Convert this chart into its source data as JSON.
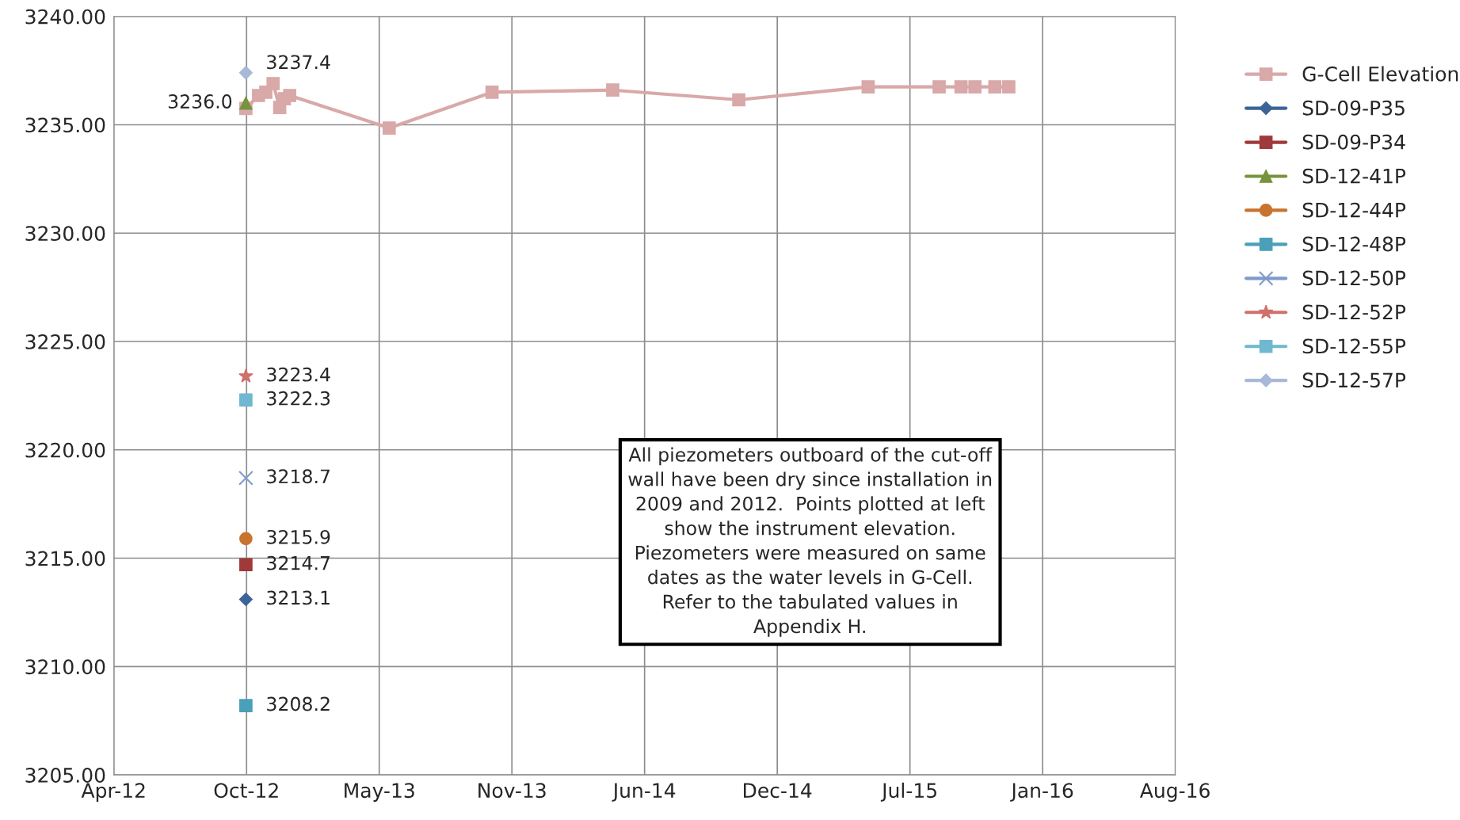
{
  "chart_data": {
    "type": "line",
    "xlim": [
      "2012-04-01",
      "2016-08-18"
    ],
    "xticks": [
      {
        "value": "2012-04-01",
        "label": "Apr-12"
      },
      {
        "value": "2012-10-18",
        "label": "Oct-12"
      },
      {
        "value": "2013-05-06",
        "label": "May-13"
      },
      {
        "value": "2013-11-22",
        "label": "Nov-13"
      },
      {
        "value": "2014-06-10",
        "label": "Jun-14"
      },
      {
        "value": "2014-12-27",
        "label": "Dec-14"
      },
      {
        "value": "2015-07-15",
        "label": "Jul-15"
      },
      {
        "value": "2016-01-31",
        "label": "Jan-16"
      },
      {
        "value": "2016-08-18",
        "label": "Aug-16"
      }
    ],
    "ylim": [
      3205,
      3240
    ],
    "yticks": [
      {
        "value": 3205,
        "label": "3205.00"
      },
      {
        "value": 3210,
        "label": "3210.00"
      },
      {
        "value": 3215,
        "label": "3215.00"
      },
      {
        "value": 3220,
        "label": "3220.00"
      },
      {
        "value": 3225,
        "label": "3225.00"
      },
      {
        "value": 3230,
        "label": "3230.00"
      },
      {
        "value": 3235,
        "label": "3235.00"
      },
      {
        "value": 3240,
        "label": "3240.00"
      }
    ],
    "grid": true,
    "legend": "right",
    "line_style": "solid",
    "series": [
      {
        "name": "G-Cell Elevation",
        "color": "#d9a8a8",
        "marker": "square",
        "x": [
          "2012-10-17",
          "2012-11-05",
          "2012-11-16",
          "2012-11-27",
          "2012-12-07",
          "2012-12-14",
          "2012-12-22",
          "2013-05-21",
          "2013-10-23",
          "2014-04-23",
          "2014-10-30",
          "2015-05-13",
          "2015-08-28",
          "2015-09-30",
          "2015-10-21",
          "2015-11-20",
          "2015-12-11"
        ],
        "values": [
          3235.75,
          3236.35,
          3236.5,
          3236.9,
          3235.8,
          3236.2,
          3236.35,
          3234.85,
          3236.5,
          3236.6,
          3236.15,
          3236.75,
          3236.75,
          3236.75,
          3236.75,
          3236.75,
          3236.75
        ]
      },
      {
        "name": "SD-09-P35",
        "color": "#3c6496",
        "marker": "diamond",
        "x": [
          "2012-10-17"
        ],
        "values": [
          3213.1
        ],
        "value_labels": [
          "3213.1"
        ]
      },
      {
        "name": "SD-09-P34",
        "color": "#a0393a",
        "marker": "square",
        "x": [
          "2012-10-17"
        ],
        "values": [
          3214.7
        ],
        "value_labels": [
          "3214.7"
        ]
      },
      {
        "name": "SD-12-41P",
        "color": "#77933c",
        "marker": "triangle",
        "x": [
          "2012-10-17"
        ],
        "values": [
          3236.0
        ],
        "value_labels": [
          "3236.0"
        ]
      },
      {
        "name": "SD-12-44P",
        "color": "#c8742f",
        "marker": "circle",
        "x": [
          "2012-10-17"
        ],
        "values": [
          3215.9
        ],
        "value_labels": [
          "3215.9"
        ]
      },
      {
        "name": "SD-12-48P",
        "color": "#4aa0b8",
        "marker": "square",
        "x": [
          "2012-10-17"
        ],
        "values": [
          3208.2
        ],
        "value_labels": [
          "3208.2"
        ]
      },
      {
        "name": "SD-12-50P",
        "color": "#7f9bc9",
        "marker": "cross",
        "x": [
          "2012-10-17"
        ],
        "values": [
          3218.7
        ],
        "value_labels": [
          "3218.7"
        ]
      },
      {
        "name": "SD-12-52P",
        "color": "#d0706c",
        "marker": "star",
        "x": [
          "2012-10-17"
        ],
        "values": [
          3223.4
        ],
        "value_labels": [
          "3223.4"
        ]
      },
      {
        "name": "SD-12-55P",
        "color": "#6fb8cf",
        "marker": "square",
        "x": [
          "2012-10-17"
        ],
        "values": [
          3222.3
        ],
        "value_labels": [
          "3222.3"
        ]
      },
      {
        "name": "SD-12-57P",
        "color": "#a8b8d8",
        "marker": "diamond",
        "x": [
          "2012-10-17"
        ],
        "values": [
          3237.4
        ],
        "value_labels": [
          "3237.4"
        ]
      }
    ],
    "annotations": [
      "All piezometers outboard of the cut-off\nwall have been dry since installation in\n2009 and 2012.  Points plotted at left\nshow the instrument elevation.\nPiezometers were measured on same\ndates as the water levels in G-Cell.\nRefer to the tabulated values in\nAppendix H."
    ]
  }
}
